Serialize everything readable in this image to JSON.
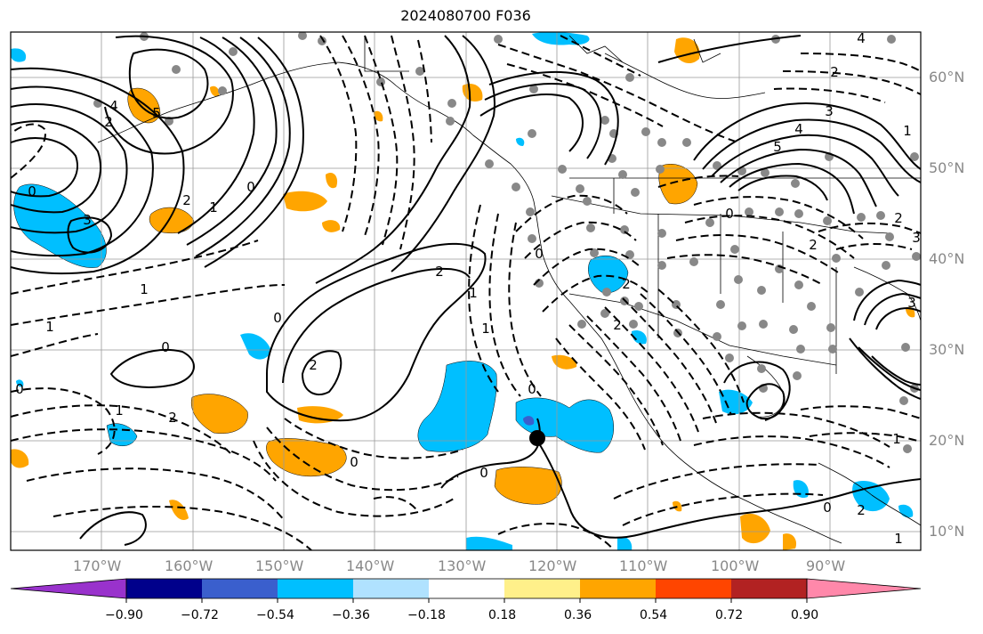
{
  "title": "2024080700 F036",
  "lon_labels": [
    "170°W",
    "160°W",
    "150°W",
    "140°W",
    "130°W",
    "120°W",
    "110°W",
    "100°W",
    "90°W"
  ],
  "lat_labels": [
    "60°N",
    "50°N",
    "40°N",
    "30°N",
    "20°N",
    "10°N"
  ],
  "colorbar": {
    "colors": [
      "#9932cc",
      "#00008b",
      "#3a5fcd",
      "#00bfff",
      "#b0e2ff",
      "#ffffff",
      "#fff08a",
      "#ffa500",
      "#ff4500",
      "#b22222",
      "#ff88aa"
    ],
    "tick_labels": [
      "−0.90",
      "−0.72",
      "−0.54",
      "−0.36",
      "−0.18",
      "0.18",
      "0.36",
      "0.54",
      "0.72",
      "0.90"
    ]
  },
  "contour_labels": [
    "0",
    "2",
    "3",
    "1",
    "0",
    "1",
    "2",
    "0",
    "1",
    "0",
    "2",
    "1",
    "2",
    "0",
    "1",
    "0",
    "1",
    "2",
    "0",
    "2",
    "1",
    "0",
    "2",
    "0",
    "2",
    "1",
    "3",
    "4",
    "0",
    "2",
    "4",
    "3",
    "5",
    "2",
    "0",
    "1",
    "2",
    "3",
    "4",
    "5"
  ]
}
